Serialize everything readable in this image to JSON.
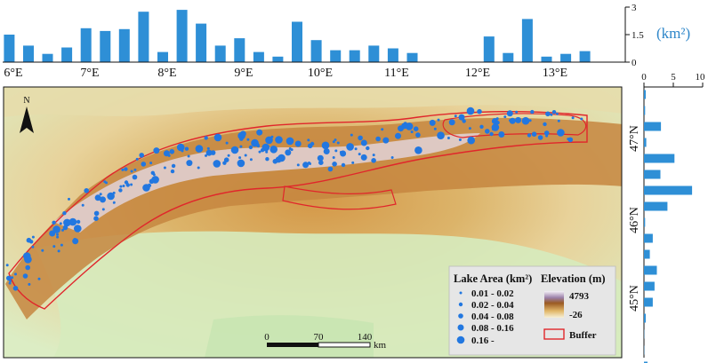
{
  "colors": {
    "bar": "#2e8fd6",
    "lake": "#2277e0",
    "buffer": "#e0262b",
    "unit": "#2e86c9",
    "lowland": "#d8ecc0",
    "midland": "#e7cc8c",
    "upland": "#b8782e",
    "peak": "#ece7f0"
  },
  "top_hist": {
    "unit_label": "(km²)",
    "y_ticks": [
      "3",
      "1.5",
      "0"
    ],
    "ylim": [
      0,
      3
    ],
    "x_ticks": [
      "6°E",
      "7°E",
      "8°E",
      "9°E",
      "10°E",
      "11°E",
      "12°E",
      "13°E"
    ]
  },
  "side_hist": {
    "x_ticks": [
      "0",
      "5",
      "10"
    ],
    "xlim": [
      0,
      10
    ],
    "y_ticks": [
      "47°N",
      "46°N",
      "45°N"
    ]
  },
  "map": {
    "north_label": "N",
    "lake_legend": {
      "title": "Lake Area (km²)",
      "classes": [
        "0.01 - 0.02",
        "0.02 - 0.04",
        "0.04 - 0.08",
        "0.08 - 0.16",
        "0.16 -"
      ]
    },
    "elevation_legend": {
      "title": "Elevation (m)",
      "max": "4793",
      "min": "-26"
    },
    "buffer_label": "Buffer",
    "scale_bar": {
      "labels": [
        "0",
        "70",
        "140"
      ],
      "unit": "km"
    }
  },
  "chart_data": [
    {
      "type": "bar",
      "title": "",
      "xlabel": "",
      "ylabel": "(km²)",
      "orientation": "vertical",
      "ylim": [
        0,
        3
      ],
      "x": [
        5.95,
        6.2,
        6.45,
        6.7,
        6.95,
        7.2,
        7.45,
        7.7,
        7.95,
        8.2,
        8.45,
        8.7,
        8.95,
        9.2,
        9.45,
        9.7,
        9.95,
        10.2,
        10.45,
        10.7,
        10.95,
        11.2,
        11.45,
        11.7,
        11.95,
        12.2,
        12.45,
        12.7,
        12.95,
        13.2,
        13.45
      ],
      "values": [
        1.5,
        0.9,
        0.45,
        0.8,
        1.85,
        1.7,
        1.8,
        2.75,
        0.55,
        2.85,
        2.1,
        0.9,
        1.3,
        0.55,
        0.3,
        2.2,
        1.2,
        0.65,
        0.65,
        0.9,
        0.75,
        0.5,
        0.02,
        0.02,
        0.02,
        1.4,
        0.5,
        2.35,
        0.3,
        0.45,
        0.6
      ]
    },
    {
      "type": "bar",
      "title": "",
      "xlabel": "",
      "ylabel": "",
      "orientation": "horizontal",
      "xlim": [
        0,
        10
      ],
      "y": [
        47.55,
        47.35,
        47.15,
        46.95,
        46.75,
        46.55,
        46.35,
        46.15,
        45.95,
        45.75,
        45.55,
        45.35,
        45.15,
        44.95,
        44.75,
        44.55,
        44.35,
        44.15
      ],
      "values": [
        0.3,
        0.2,
        2.9,
        0.4,
        5.2,
        2.8,
        8.2,
        4.0,
        0.2,
        1.5,
        1.0,
        2.2,
        1.8,
        1.5,
        0.3,
        0.05,
        0.05,
        0.6
      ]
    }
  ]
}
